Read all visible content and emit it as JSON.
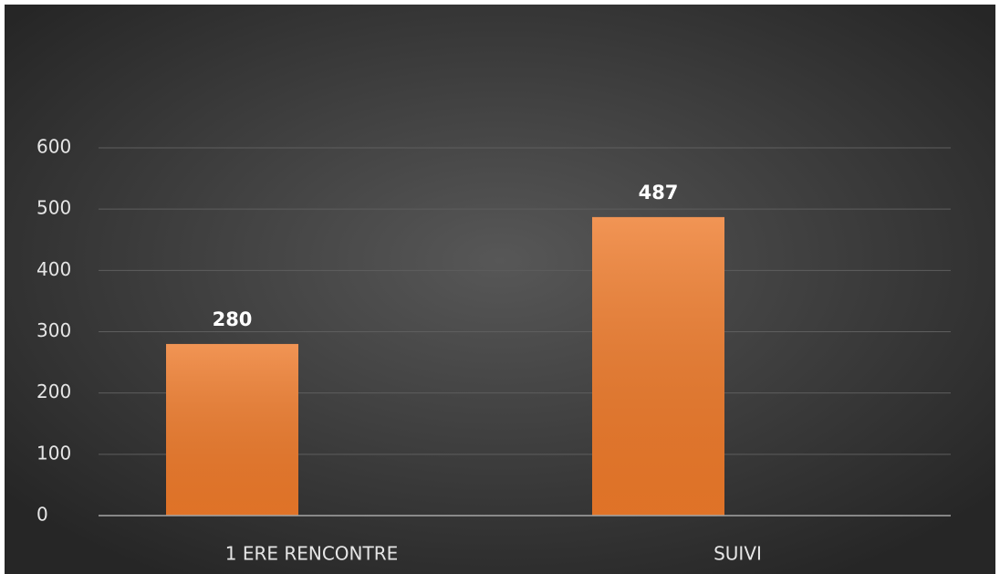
{
  "chart_data": {
    "type": "bar",
    "categories": [
      "1 ERE RENCONTRE",
      "SUIVI"
    ],
    "values": [
      280,
      487
    ],
    "color": "#ee7a2a",
    "ylim": [
      0,
      600
    ],
    "yticks": [
      0,
      100,
      200,
      300,
      400,
      500,
      600
    ],
    "grid": true
  }
}
